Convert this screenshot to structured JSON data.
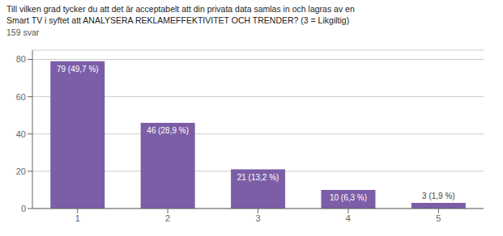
{
  "chart_data": {
    "type": "bar",
    "title": [
      "Till vilken grad tycker du att det är acceptabelt att din privata data samlas in och lagras av en",
      "Smart TV i syftet att ANALYSERA REKLAMEFFEKTIVITET OCH TRENDER? (3 = Likgiltig)"
    ],
    "subtitle": "159 svar",
    "categories": [
      1,
      2,
      3,
      4,
      5
    ],
    "values": [
      79,
      46,
      21,
      10,
      3
    ],
    "value_labels": [
      "79 (49,7 %)",
      "46 (28,9 %)",
      "21 (13,2 %)",
      "10 (6,3 %)",
      "3 (1,9 %)"
    ],
    "data_labels": true,
    "color": "#7B5EA7",
    "ylim": [
      0,
      85
    ],
    "yticks": [
      0,
      20,
      40,
      60,
      80
    ],
    "grid": true
  }
}
